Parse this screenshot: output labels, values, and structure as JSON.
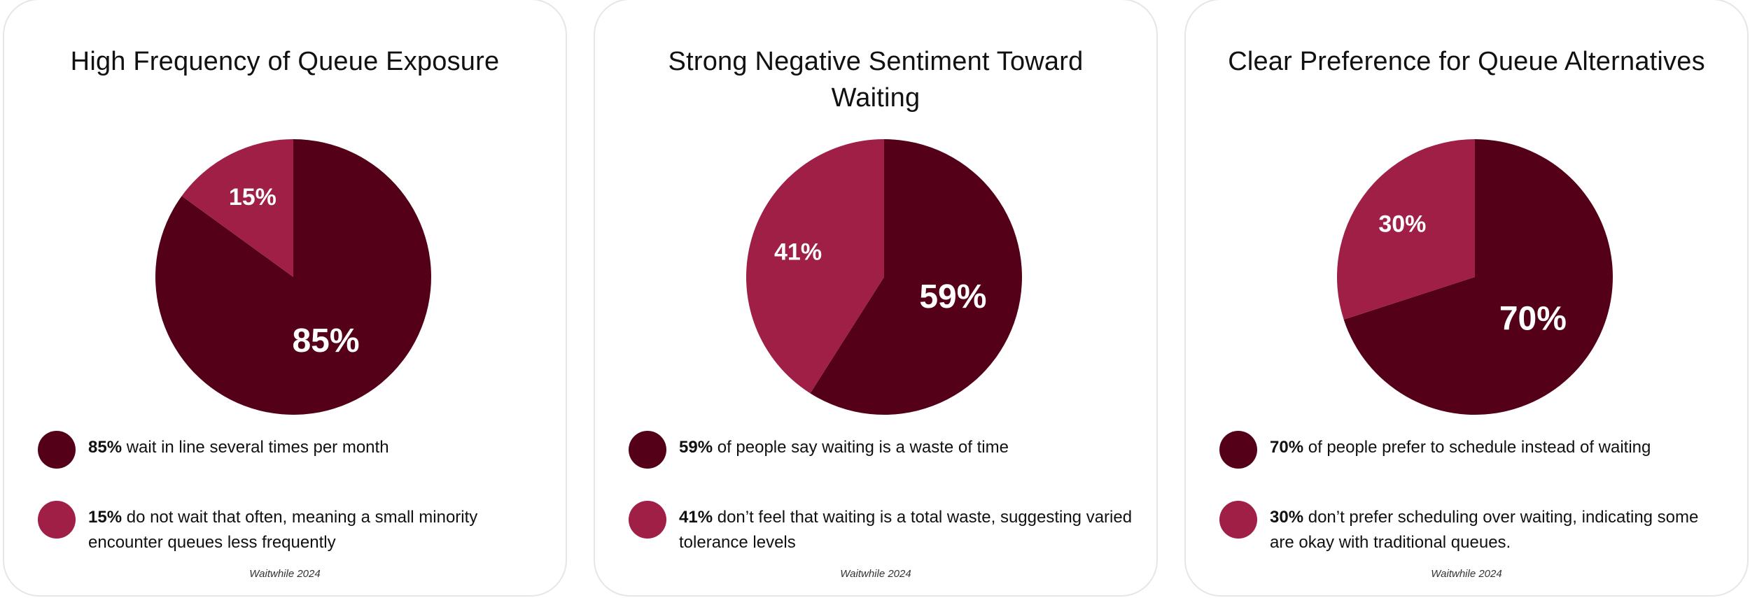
{
  "colors": {
    "dark": "#540018",
    "light": "#a01f47",
    "label": "#ffffff"
  },
  "chart_data": [
    {
      "type": "pie",
      "title": "High Frequency of Queue Exposure",
      "slices": [
        {
          "label": "85%",
          "value": 85,
          "color": "#540018"
        },
        {
          "label": "15%",
          "value": 15,
          "color": "#a01f47"
        }
      ],
      "legend": [
        {
          "strong": "85%",
          "text": " wait in line several times per month",
          "color": "#540018"
        },
        {
          "strong": "15%",
          "text": " do not wait that often, meaning a small minority encounter queues less frequently",
          "color": "#a01f47"
        }
      ],
      "source": "Waitwhile 2024"
    },
    {
      "type": "pie",
      "title": "Strong Negative Sentiment Toward Waiting",
      "slices": [
        {
          "label": "59%",
          "value": 59,
          "color": "#540018"
        },
        {
          "label": "41%",
          "value": 41,
          "color": "#a01f47"
        }
      ],
      "legend": [
        {
          "strong": "59%",
          "text": " of people say waiting is a waste of time",
          "color": "#540018"
        },
        {
          "strong": "41%",
          "text": " don’t feel that waiting is a total waste, suggesting varied tolerance levels",
          "color": "#a01f47"
        }
      ],
      "source": "Waitwhile 2024"
    },
    {
      "type": "pie",
      "title": "Clear Preference for Queue Alternatives",
      "slices": [
        {
          "label": "70%",
          "value": 70,
          "color": "#540018"
        },
        {
          "label": "30%",
          "value": 30,
          "color": "#a01f47"
        }
      ],
      "legend": [
        {
          "strong": "70%",
          "text": " of people prefer to schedule instead of waiting",
          "color": "#540018"
        },
        {
          "strong": "30%",
          "text": " don’t prefer scheduling over waiting, indicating some are okay with traditional queues.",
          "color": "#a01f47"
        }
      ],
      "source": "Waitwhile 2024"
    }
  ]
}
